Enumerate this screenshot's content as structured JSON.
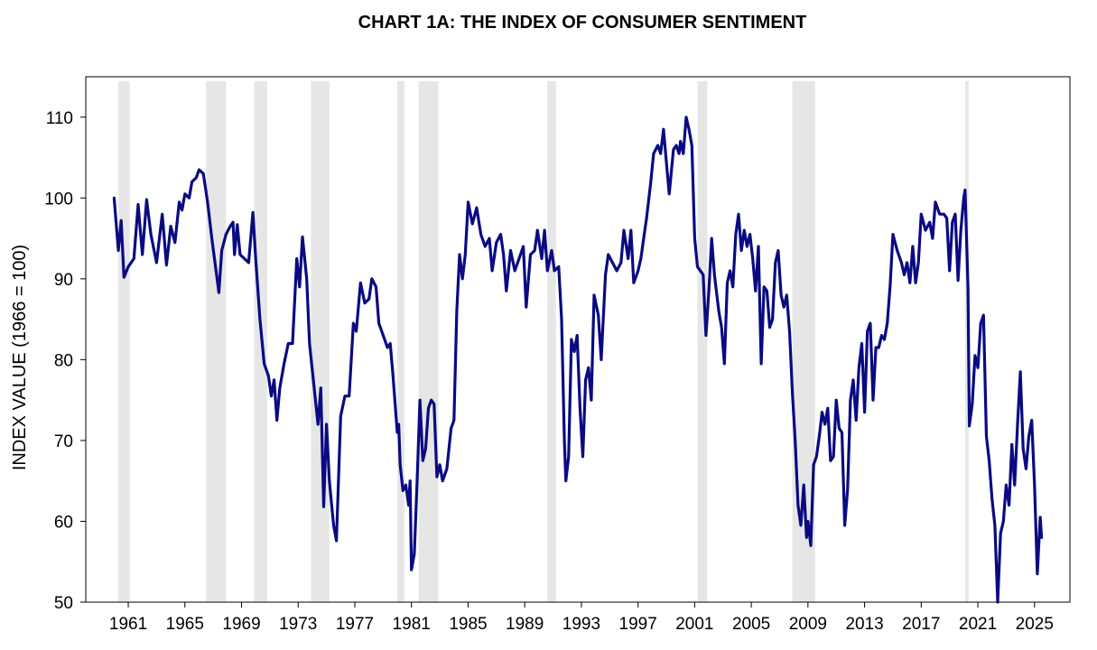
{
  "chart_data": {
    "type": "line",
    "title": "CHART 1A: THE INDEX OF CONSUMER SENTIMENT",
    "xlabel": "",
    "ylabel": "INDEX VALUE (1966 = 100)",
    "ylim": [
      50,
      115
    ],
    "xlim": [
      1958.0,
      2027.5
    ],
    "y_ticks": [
      50,
      60,
      70,
      80,
      90,
      100,
      110
    ],
    "x_ticks": [
      "1961",
      "1965",
      "1969",
      "1973",
      "1977",
      "1981",
      "1985",
      "1989",
      "1993",
      "1997",
      "2001",
      "2005",
      "2009",
      "2013",
      "2017",
      "2021",
      "2025"
    ],
    "grid": false,
    "line_color": "#0a0a82",
    "recession_color": "#e6e6e6",
    "recessions": [
      {
        "start": "1960.3",
        "end": "1961.1"
      },
      {
        "start": "1966.5",
        "end": "1967.9"
      },
      {
        "start": "1969.9",
        "end": "1970.8"
      },
      {
        "start": "1973.9",
        "end": "1975.2"
      },
      {
        "start": "1980.0",
        "end": "1980.5"
      },
      {
        "start": "1981.5",
        "end": "1982.9"
      },
      {
        "start": "1990.6",
        "end": "1991.2"
      },
      {
        "start": "2001.2",
        "end": "2001.9"
      },
      {
        "start": "2007.9",
        "end": "2009.5"
      },
      {
        "start": "2020.1",
        "end": "2020.35"
      }
    ],
    "series": [
      {
        "values": [
          [
            1960.0,
            100
          ],
          [
            1960.3,
            93.5
          ],
          [
            1960.5,
            97.2
          ],
          [
            1960.7,
            90.2
          ],
          [
            1961.0,
            91.5
          ],
          [
            1961.4,
            92.5
          ],
          [
            1961.7,
            99.2
          ],
          [
            1962.0,
            93.0
          ],
          [
            1962.3,
            99.8
          ],
          [
            1962.6,
            95.5
          ],
          [
            1963.0,
            92.0
          ],
          [
            1963.4,
            98.0
          ],
          [
            1963.7,
            91.7
          ],
          [
            1964.0,
            96.5
          ],
          [
            1964.3,
            94.5
          ],
          [
            1964.6,
            99.5
          ],
          [
            1964.8,
            98.5
          ],
          [
            1965.0,
            100.5
          ],
          [
            1965.3,
            100.0
          ],
          [
            1965.5,
            102.0
          ],
          [
            1965.8,
            102.5
          ],
          [
            1966.0,
            103.5
          ],
          [
            1966.3,
            103.0
          ],
          [
            1966.6,
            99.5
          ],
          [
            1966.9,
            95.0
          ],
          [
            1967.2,
            91.0
          ],
          [
            1967.4,
            88.3
          ],
          [
            1967.6,
            93.5
          ],
          [
            1967.9,
            95.5
          ],
          [
            1968.2,
            96.5
          ],
          [
            1968.4,
            97.0
          ],
          [
            1968.5,
            93.0
          ],
          [
            1968.7,
            96.7
          ],
          [
            1968.9,
            93.0
          ],
          [
            1969.2,
            92.5
          ],
          [
            1969.5,
            92.0
          ],
          [
            1969.8,
            98.2
          ],
          [
            1970.0,
            92.5
          ],
          [
            1970.3,
            85.0
          ],
          [
            1970.6,
            79.5
          ],
          [
            1970.9,
            78.0
          ],
          [
            1971.1,
            75.5
          ],
          [
            1971.3,
            77.5
          ],
          [
            1971.5,
            72.5
          ],
          [
            1971.7,
            76.5
          ],
          [
            1972.0,
            79.5
          ],
          [
            1972.3,
            82.0
          ],
          [
            1972.6,
            82.0
          ],
          [
            1972.9,
            92.5
          ],
          [
            1973.1,
            89.0
          ],
          [
            1973.3,
            95.2
          ],
          [
            1973.6,
            90.0
          ],
          [
            1973.8,
            82.0
          ],
          [
            1974.1,
            77.0
          ],
          [
            1974.4,
            72.0
          ],
          [
            1974.6,
            76.5
          ],
          [
            1974.8,
            61.8
          ],
          [
            1975.0,
            72.0
          ],
          [
            1975.2,
            65.0
          ],
          [
            1975.5,
            59.5
          ],
          [
            1975.7,
            57.6
          ],
          [
            1976.0,
            73.0
          ],
          [
            1976.3,
            75.5
          ],
          [
            1976.6,
            75.5
          ],
          [
            1976.9,
            84.5
          ],
          [
            1977.1,
            83.5
          ],
          [
            1977.4,
            89.5
          ],
          [
            1977.7,
            87.0
          ],
          [
            1978.0,
            87.5
          ],
          [
            1978.2,
            90.0
          ],
          [
            1978.5,
            89.0
          ],
          [
            1978.7,
            84.5
          ],
          [
            1979.0,
            83.0
          ],
          [
            1979.3,
            81.5
          ],
          [
            1979.5,
            82.0
          ],
          [
            1979.7,
            78.0
          ],
          [
            1980.0,
            71.0
          ],
          [
            1980.1,
            72.0
          ],
          [
            1980.2,
            67.0
          ],
          [
            1980.4,
            63.8
          ],
          [
            1980.6,
            64.5
          ],
          [
            1980.8,
            62.0
          ],
          [
            1980.9,
            65.0
          ],
          [
            1981.0,
            54.0
          ],
          [
            1981.2,
            56.0
          ],
          [
            1981.4,
            65.0
          ],
          [
            1981.6,
            75.0
          ],
          [
            1981.8,
            67.5
          ],
          [
            1982.0,
            69.0
          ],
          [
            1982.2,
            74.0
          ],
          [
            1982.4,
            75.0
          ],
          [
            1982.6,
            74.5
          ],
          [
            1982.8,
            65.5
          ],
          [
            1983.0,
            67.0
          ],
          [
            1983.2,
            65.0
          ],
          [
            1983.5,
            66.5
          ],
          [
            1983.8,
            71.5
          ],
          [
            1984.0,
            72.5
          ],
          [
            1984.2,
            86.0
          ],
          [
            1984.4,
            93.0
          ],
          [
            1984.6,
            90.0
          ],
          [
            1984.8,
            93.0
          ],
          [
            1985.0,
            99.5
          ],
          [
            1985.3,
            96.8
          ],
          [
            1985.6,
            98.8
          ],
          [
            1985.9,
            95.5
          ],
          [
            1986.2,
            94.0
          ],
          [
            1986.5,
            95.0
          ],
          [
            1986.7,
            91.0
          ],
          [
            1987.0,
            94.5
          ],
          [
            1987.3,
            95.5
          ],
          [
            1987.5,
            93.0
          ],
          [
            1987.7,
            88.5
          ],
          [
            1988.0,
            93.5
          ],
          [
            1988.3,
            91.0
          ],
          [
            1988.6,
            92.5
          ],
          [
            1988.9,
            94.0
          ],
          [
            1989.1,
            86.5
          ],
          [
            1989.4,
            93.0
          ],
          [
            1989.7,
            93.5
          ],
          [
            1989.9,
            96.0
          ],
          [
            1990.2,
            92.5
          ],
          [
            1990.4,
            96.0
          ],
          [
            1990.6,
            91.0
          ],
          [
            1990.9,
            93.5
          ],
          [
            1991.1,
            91.0
          ],
          [
            1991.4,
            91.5
          ],
          [
            1991.6,
            85.0
          ],
          [
            1991.8,
            70.0
          ],
          [
            1991.9,
            65.0
          ],
          [
            1992.1,
            68.0
          ],
          [
            1992.3,
            82.5
          ],
          [
            1992.5,
            81.0
          ],
          [
            1992.7,
            83.0
          ],
          [
            1992.9,
            74.0
          ],
          [
            1993.1,
            68.0
          ],
          [
            1993.3,
            77.5
          ],
          [
            1993.5,
            79.0
          ],
          [
            1993.7,
            75.0
          ],
          [
            1993.9,
            88.0
          ],
          [
            1994.2,
            85.5
          ],
          [
            1994.4,
            80.0
          ],
          [
            1994.7,
            90.5
          ],
          [
            1994.9,
            93.0
          ],
          [
            1995.2,
            92.0
          ],
          [
            1995.5,
            91.0
          ],
          [
            1995.8,
            92.0
          ],
          [
            1996.0,
            96.0
          ],
          [
            1996.3,
            92.5
          ],
          [
            1996.5,
            96.0
          ],
          [
            1996.7,
            89.5
          ],
          [
            1997.0,
            91.0
          ],
          [
            1997.2,
            92.5
          ],
          [
            1997.4,
            95.0
          ],
          [
            1997.6,
            97.5
          ],
          [
            1997.9,
            102.0
          ],
          [
            1998.1,
            105.5
          ],
          [
            1998.4,
            106.5
          ],
          [
            1998.6,
            105.5
          ],
          [
            1998.8,
            108.5
          ],
          [
            1999.0,
            104.5
          ],
          [
            1999.2,
            100.5
          ],
          [
            1999.5,
            106.0
          ],
          [
            1999.7,
            106.5
          ],
          [
            1999.9,
            105.5
          ],
          [
            2000.0,
            107.0
          ],
          [
            2000.2,
            105.5
          ],
          [
            2000.4,
            110.0
          ],
          [
            2000.6,
            108.5
          ],
          [
            2000.8,
            106.5
          ],
          [
            2001.0,
            95.0
          ],
          [
            2001.2,
            91.5
          ],
          [
            2001.4,
            91.0
          ],
          [
            2001.6,
            90.5
          ],
          [
            2001.8,
            83.0
          ],
          [
            2002.0,
            88.5
          ],
          [
            2002.2,
            95.0
          ],
          [
            2002.4,
            90.5
          ],
          [
            2002.7,
            86.0
          ],
          [
            2002.9,
            84.0
          ],
          [
            2003.1,
            79.5
          ],
          [
            2003.3,
            89.5
          ],
          [
            2003.5,
            91.0
          ],
          [
            2003.7,
            89.0
          ],
          [
            2003.9,
            95.5
          ],
          [
            2004.1,
            98.0
          ],
          [
            2004.3,
            93.5
          ],
          [
            2004.5,
            96.0
          ],
          [
            2004.7,
            94.0
          ],
          [
            2004.9,
            95.5
          ],
          [
            2005.1,
            92.5
          ],
          [
            2005.3,
            88.5
          ],
          [
            2005.5,
            94.0
          ],
          [
            2005.7,
            79.5
          ],
          [
            2005.9,
            89.0
          ],
          [
            2006.1,
            88.5
          ],
          [
            2006.3,
            84.0
          ],
          [
            2006.5,
            85.0
          ],
          [
            2006.7,
            92.0
          ],
          [
            2006.9,
            93.5
          ],
          [
            2007.1,
            88.0
          ],
          [
            2007.3,
            86.5
          ],
          [
            2007.5,
            88.0
          ],
          [
            2007.7,
            83.5
          ],
          [
            2007.9,
            76.0
          ],
          [
            2008.1,
            70.0
          ],
          [
            2008.3,
            62.0
          ],
          [
            2008.5,
            59.5
          ],
          [
            2008.7,
            64.5
          ],
          [
            2008.9,
            58.0
          ],
          [
            2009.0,
            60.0
          ],
          [
            2009.2,
            57.0
          ],
          [
            2009.4,
            67.0
          ],
          [
            2009.6,
            68.0
          ],
          [
            2009.8,
            70.5
          ],
          [
            2010.0,
            73.5
          ],
          [
            2010.2,
            72.0
          ],
          [
            2010.4,
            74.0
          ],
          [
            2010.6,
            67.5
          ],
          [
            2010.8,
            68.0
          ],
          [
            2011.0,
            75.0
          ],
          [
            2011.2,
            71.5
          ],
          [
            2011.4,
            71.0
          ],
          [
            2011.6,
            59.5
          ],
          [
            2011.8,
            64.0
          ],
          [
            2012.0,
            75.0
          ],
          [
            2012.2,
            77.5
          ],
          [
            2012.4,
            72.5
          ],
          [
            2012.6,
            79.0
          ],
          [
            2012.8,
            82.0
          ],
          [
            2013.0,
            73.5
          ],
          [
            2013.2,
            83.5
          ],
          [
            2013.4,
            84.5
          ],
          [
            2013.6,
            75.0
          ],
          [
            2013.8,
            81.5
          ],
          [
            2014.0,
            81.5
          ],
          [
            2014.2,
            83.0
          ],
          [
            2014.4,
            82.5
          ],
          [
            2014.6,
            84.5
          ],
          [
            2014.8,
            89.0
          ],
          [
            2015.0,
            95.5
          ],
          [
            2015.3,
            93.5
          ],
          [
            2015.6,
            92.0
          ],
          [
            2015.8,
            90.5
          ],
          [
            2016.0,
            92.0
          ],
          [
            2016.2,
            89.5
          ],
          [
            2016.4,
            94.0
          ],
          [
            2016.6,
            89.5
          ],
          [
            2016.8,
            92.0
          ],
          [
            2017.0,
            98.0
          ],
          [
            2017.3,
            96.0
          ],
          [
            2017.6,
            97.0
          ],
          [
            2017.8,
            95.0
          ],
          [
            2018.0,
            99.5
          ],
          [
            2018.3,
            98.0
          ],
          [
            2018.6,
            98.0
          ],
          [
            2018.8,
            97.5
          ],
          [
            2019.0,
            91.0
          ],
          [
            2019.2,
            97.0
          ],
          [
            2019.4,
            98.0
          ],
          [
            2019.6,
            89.8
          ],
          [
            2019.8,
            96.0
          ],
          [
            2020.0,
            100.0
          ],
          [
            2020.1,
            101.0
          ],
          [
            2020.3,
            89.0
          ],
          [
            2020.4,
            71.8
          ],
          [
            2020.6,
            74.5
          ],
          [
            2020.8,
            80.5
          ],
          [
            2021.0,
            79.0
          ],
          [
            2021.2,
            84.5
          ],
          [
            2021.4,
            85.5
          ],
          [
            2021.6,
            70.5
          ],
          [
            2021.8,
            67.5
          ],
          [
            2022.0,
            62.8
          ],
          [
            2022.2,
            59.5
          ],
          [
            2022.4,
            50.0
          ],
          [
            2022.6,
            58.5
          ],
          [
            2022.8,
            60.0
          ],
          [
            2023.0,
            64.5
          ],
          [
            2023.2,
            62.0
          ],
          [
            2023.4,
            69.5
          ],
          [
            2023.6,
            64.5
          ],
          [
            2023.8,
            72.0
          ],
          [
            2024.0,
            78.5
          ],
          [
            2024.2,
            69.0
          ],
          [
            2024.4,
            66.5
          ],
          [
            2024.6,
            70.5
          ],
          [
            2024.8,
            72.5
          ],
          [
            2025.0,
            64.5
          ],
          [
            2025.2,
            53.5
          ],
          [
            2025.4,
            60.5
          ],
          [
            2025.5,
            58.0
          ]
        ]
      }
    ]
  }
}
